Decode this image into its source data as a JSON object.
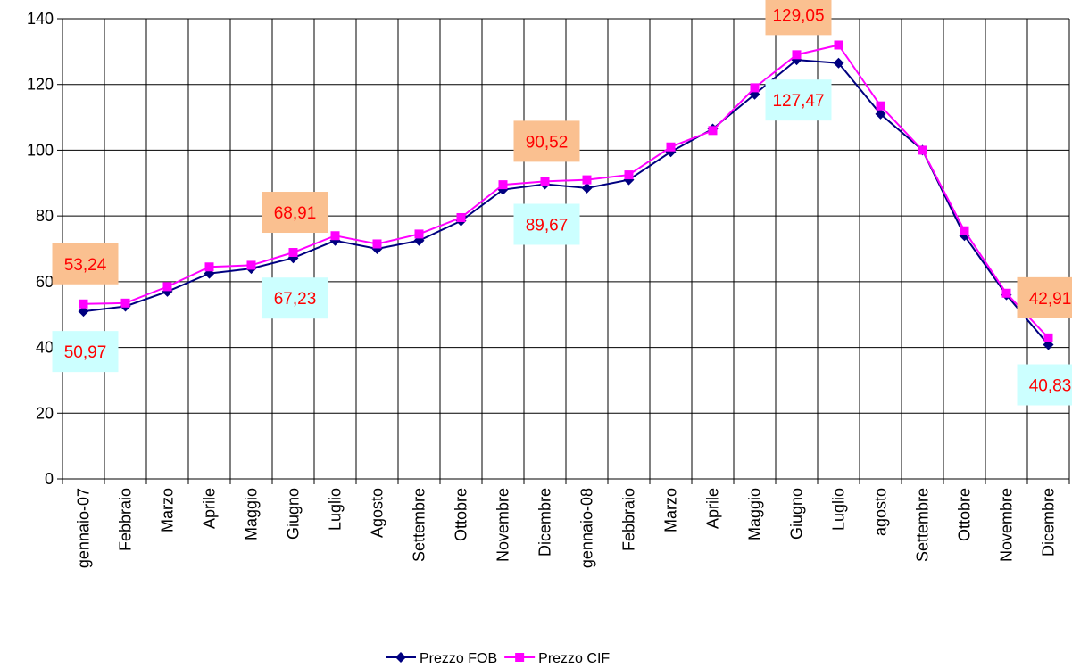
{
  "chart_data": {
    "type": "line",
    "categories": [
      "gennaio-07",
      "Febbraio",
      "Marzo",
      "Aprile",
      "Maggio",
      "Giugno",
      "Luglio",
      "Agosto",
      "Settembre",
      "Ottobre",
      "Novembre",
      "Dicembre",
      "gennaio-08",
      "Febbraio",
      "Marzo",
      "Aprile",
      "Maggio",
      "Giugno",
      "Luglio",
      "agosto",
      "Settembre",
      "Ottobre",
      "Novembre",
      "Dicembre"
    ],
    "series": [
      {
        "name": "Prezzo FOB",
        "color": "#000080",
        "marker": "diamond",
        "values": [
          50.97,
          52.5,
          57,
          62.5,
          64,
          67.23,
          72.5,
          70,
          72.5,
          78.5,
          88,
          89.67,
          88.5,
          91,
          99.5,
          106.5,
          117,
          127.47,
          126.5,
          111,
          100,
          74,
          56,
          40.83
        ],
        "value_labels": [
          "50,97",
          null,
          null,
          null,
          null,
          "67,23",
          null,
          null,
          null,
          null,
          null,
          "89,67",
          null,
          null,
          null,
          null,
          null,
          "127,47",
          null,
          null,
          null,
          null,
          null,
          "40,83"
        ]
      },
      {
        "name": "Prezzo CIF",
        "color": "#ff00ff",
        "marker": "square",
        "values": [
          53.24,
          53.5,
          58.5,
          64.5,
          65,
          68.91,
          74,
          71.5,
          74.5,
          79.5,
          89.5,
          90.52,
          91,
          92.5,
          101,
          106,
          119,
          129.05,
          132,
          113.5,
          100,
          75.5,
          56.5,
          42.91
        ],
        "value_labels": [
          "53,24",
          null,
          null,
          null,
          null,
          "68,91",
          null,
          null,
          null,
          null,
          null,
          "90,52",
          null,
          null,
          null,
          null,
          null,
          "129,05",
          null,
          null,
          null,
          null,
          null,
          "42,91"
        ]
      }
    ],
    "ylim": [
      0,
      140
    ],
    "yticks": [
      0,
      20,
      40,
      60,
      80,
      100,
      120,
      140
    ],
    "grid": true,
    "legend": "bottom"
  }
}
